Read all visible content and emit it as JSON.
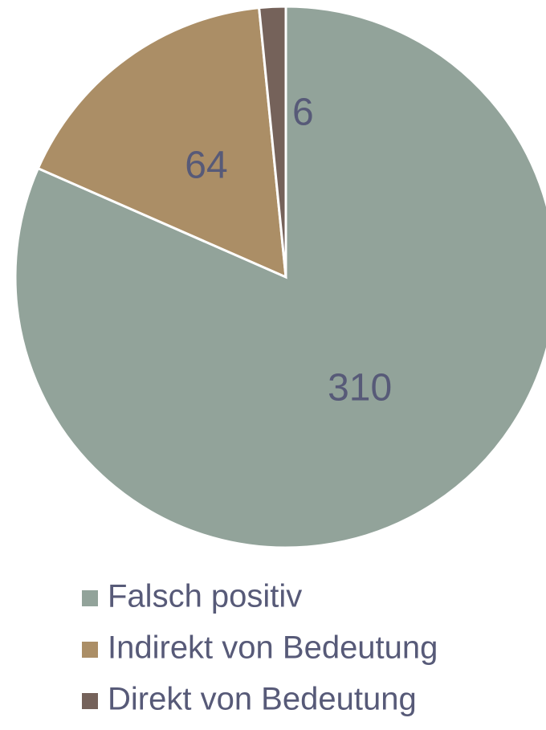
{
  "chart_data": {
    "type": "pie",
    "categories": [
      "Falsch positiv",
      "Indirekt von Bedeutung",
      "Direkt von Bedeutung"
    ],
    "values": [
      310,
      64,
      6
    ],
    "colors": [
      "#92a39a",
      "#ab8e66",
      "#75625a"
    ],
    "legend": "bottom"
  }
}
